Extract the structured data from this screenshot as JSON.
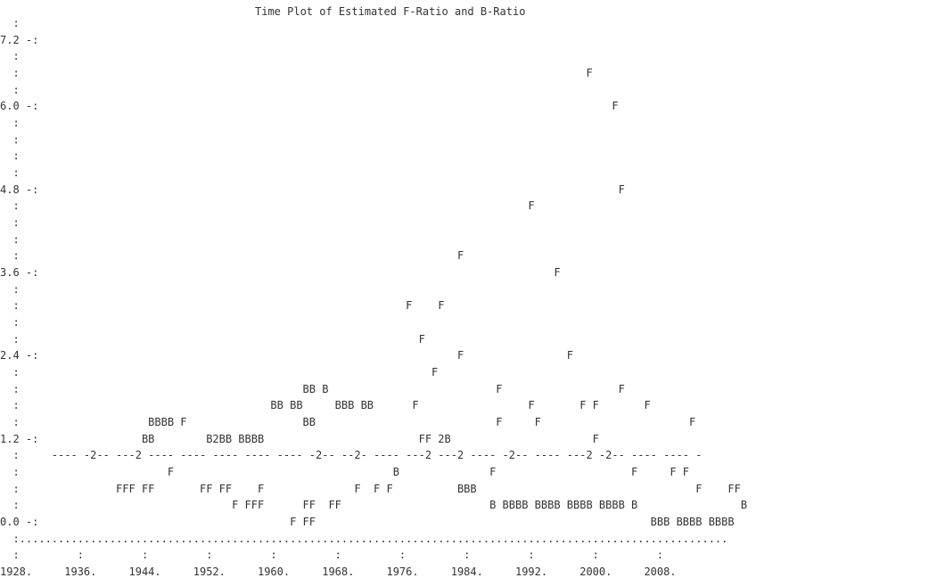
{
  "chart_data": {
    "type": "scatter",
    "title": "Time Plot of Estimated F-Ratio and B-Ratio",
    "y_ticks": [
      "7.2",
      "6.0",
      "4.8",
      "3.6",
      "2.4",
      "1.2",
      "0.0"
    ],
    "x_ticks": [
      "1928.",
      "1936.",
      "1944.",
      "1952.",
      "1960.",
      "1968.",
      "1976.",
      "1984.",
      "1992.",
      "2000.",
      "2008."
    ],
    "ylim": [
      0.0,
      7.2
    ],
    "xlim": [
      1928,
      2008
    ],
    "plot_symbols": [
      "F",
      "B",
      "2",
      "-"
    ],
    "rows": [
      "  :",
      "7.2 -:",
      "  :",
      "  :                                                                                        F",
      "  :",
      "6.0 -:                                                                                         F",
      "  :",
      "  :",
      "  :",
      "  :",
      "4.8 -:                                                                                          F",
      "  :                                                                               F",
      "  :",
      "  :",
      "  :                                                                    F",
      "3.6 -:                                                                                F",
      "  :",
      "  :                                                            F    F",
      "  :",
      "  :                                                              F",
      "2.4 -:                                                                 F                F",
      "  :                                                                F",
      "  :                                            BB B                          F                  F",
      "  :                                       BB BB     BBB BB      F                 F       F F       F",
      "  :                    BBBB F                  BB                            F     F                       F",
      "1.2 -:                BB        B2BB BBBB                        FF 2B                      F",
      "  :     ---- -2-- ---2 ---- ---- ---- ---- ---- -2-- --2- ---- ---2 ---2 ---- -2-- ---- ---2 -2-- ---- ---- -",
      "  :                       F                                  B              F                     F     F F",
      "  :               FFF FF       FF FF    F              F  F F          BBB                                  F    FF",
      "  :                                 F FFF      FF  FF                       B BBBB BBBB BBBB BBBB B                B",
      "0.0 -:                                       F FF                                                    BBB BBBB BBBB",
      "  :..............................................................................................................",
      "  :         :         :         :         :         :         :         :         :         :         :",
      "1928.     1936.     1944.     1952.     1960.     1968.     1976.     1984.     1992.     2000.     2008."
    ]
  }
}
